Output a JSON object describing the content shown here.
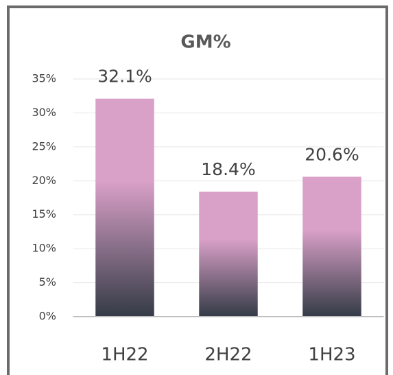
{
  "chart_data": {
    "type": "bar",
    "title": "GM%",
    "categories": [
      "1H22",
      "2H22",
      "1H23"
    ],
    "values": [
      32.1,
      18.4,
      20.6
    ],
    "value_labels": [
      "32.1%",
      "18.4%",
      "20.6%"
    ],
    "color": "#d9a0c8",
    "ylim": [
      0,
      35
    ],
    "yticks": [
      {
        "value": 0,
        "label": "0%"
      },
      {
        "value": 5,
        "label": "5%"
      },
      {
        "value": 10,
        "label": "10%"
      },
      {
        "value": 15,
        "label": "15%"
      },
      {
        "value": 20,
        "label": "20%"
      },
      {
        "value": 25,
        "label": "25%"
      },
      {
        "value": 30,
        "label": "30%"
      },
      {
        "value": 35,
        "label": "35%"
      }
    ],
    "grid": true
  }
}
